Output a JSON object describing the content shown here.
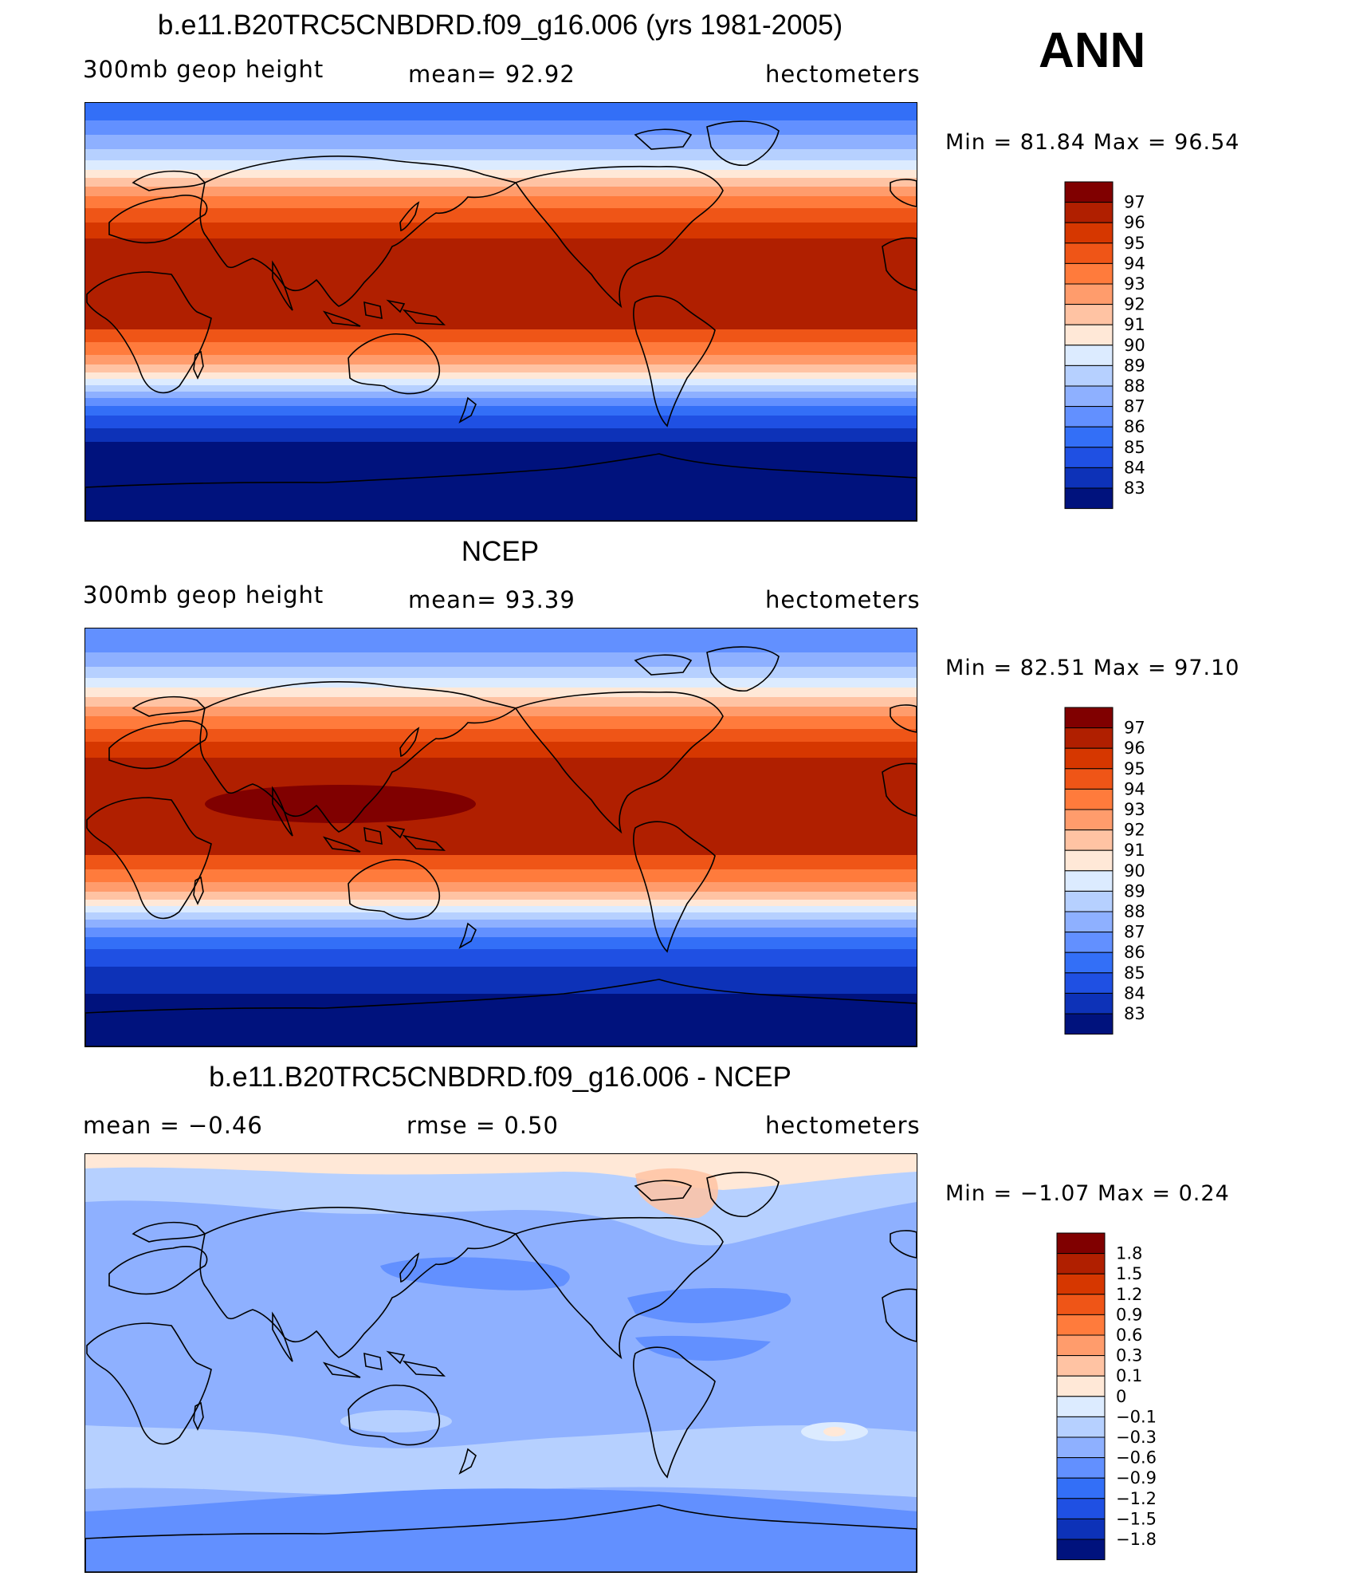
{
  "season_label": "ANN",
  "panels": [
    {
      "id": "model",
      "title": "b.e11.B20TRC5CNBDRD.f09_g16.006 (yrs 1981-2005)",
      "left_label": "300mb  geop  height",
      "center_label": "mean=   92.92",
      "units": "hectometers",
      "minmax": "Min  =    81.84  Max  =    96.54",
      "colorbar": {
        "levels": [
          "97",
          "96",
          "95",
          "94",
          "93",
          "92",
          "91",
          "90",
          "89",
          "88",
          "87",
          "86",
          "85",
          "84",
          "83"
        ],
        "colors": [
          "#800000",
          "#B01F00",
          "#D63700",
          "#EF5517",
          "#FF7B3C",
          "#FF9C6C",
          "#FFC3A3",
          "#FFE8D7",
          "#DCEBFF",
          "#B6D0FF",
          "#8EB0FF",
          "#6290FF",
          "#336FF7",
          "#1F50E3",
          "#0D32B8",
          "#00127D"
        ]
      }
    },
    {
      "id": "obs",
      "title": "NCEP",
      "left_label": "300mb  geop  height",
      "center_label": "mean=   93.39",
      "units": "hectometers",
      "minmax": "Min  =    82.51  Max  =    97.10",
      "colorbar": {
        "levels": [
          "97",
          "96",
          "95",
          "94",
          "93",
          "92",
          "91",
          "90",
          "89",
          "88",
          "87",
          "86",
          "85",
          "84",
          "83"
        ],
        "colors": [
          "#800000",
          "#B01F00",
          "#D63700",
          "#EF5517",
          "#FF7B3C",
          "#FF9C6C",
          "#FFC3A3",
          "#FFE8D7",
          "#DCEBFF",
          "#B6D0FF",
          "#8EB0FF",
          "#6290FF",
          "#336FF7",
          "#1F50E3",
          "#0D32B8",
          "#00127D"
        ]
      }
    },
    {
      "id": "diff",
      "title": "b.e11.B20TRC5CNBDRD.f09_g16.006 - NCEP",
      "left_label": "mean  =    −0.46",
      "center_label": "rmse  =     0.50",
      "units": "hectometers",
      "minmax": "Min  =   −1.07  Max  =     0.24",
      "colorbar": {
        "levels": [
          "1.8",
          "1.5",
          "1.2",
          "0.9",
          "0.6",
          "0.3",
          "0.1",
          "0",
          "−0.1",
          "−0.3",
          "−0.6",
          "−0.9",
          "−1.2",
          "−1.5",
          "−1.8"
        ],
        "colors": [
          "#800000",
          "#B01F00",
          "#D63700",
          "#EF5517",
          "#FF7B3C",
          "#FF9C6C",
          "#FFC3A3",
          "#FFE8D7",
          "#DCEBFF",
          "#B6D0FF",
          "#8EB0FF",
          "#6290FF",
          "#336FF7",
          "#1F50E3",
          "#0D32B8",
          "#00127D"
        ]
      }
    }
  ],
  "palette": {
    "c97": "#800000",
    "c96": "#B01F00",
    "c95": "#D63700",
    "c94": "#EF5517",
    "c93": "#FF7B3C",
    "c92": "#FF9C6C",
    "c91": "#FFC3A3",
    "c90": "#FFE8D7",
    "c89": "#DCEBFF",
    "c88": "#B6D0FF",
    "c87": "#8EB0FF",
    "c86": "#6290FF",
    "c85": "#336FF7",
    "c84": "#1F50E3",
    "c83": "#0D32B8",
    "cmin": "#00127D",
    "coast": "#000000"
  }
}
